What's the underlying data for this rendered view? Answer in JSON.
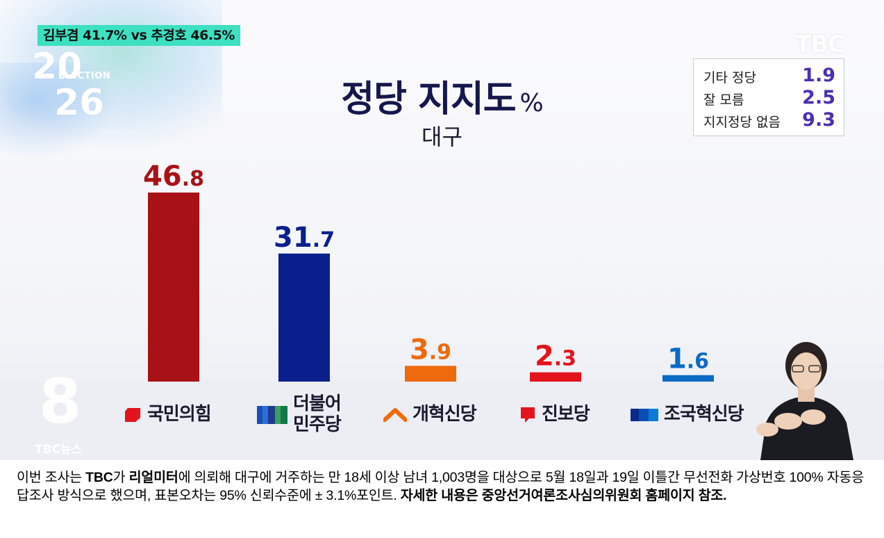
{
  "ticker": "김부겸 41.7% vs 추경호 46.5%",
  "logo": {
    "year_top": "20",
    "year_bottom": "26",
    "election": "ELECTION"
  },
  "broadcaster": "TBC",
  "chart_data": {
    "type": "bar",
    "title": "정당 지지도",
    "unit": "%",
    "subtitle": "대구",
    "categories": [
      "국민의힘",
      "더불어 민주당",
      "개혁신당",
      "진보당",
      "조국혁신당"
    ],
    "values": [
      46.8,
      31.7,
      3.9,
      2.3,
      1.6
    ],
    "value_labels": [
      "46.8",
      "31.7",
      "3.9",
      "2.3",
      "1.6"
    ],
    "colors": [
      "#a81217",
      "#0b1f8c",
      "#ef6a0c",
      "#e3141c",
      "#0b6ac4"
    ],
    "ylim": [
      0,
      50
    ],
    "grid": false,
    "others": [
      {
        "label": "기타 정당",
        "value": "1.9"
      },
      {
        "label": "잘 모름",
        "value": "2.5"
      },
      {
        "label": "지지정당 없음",
        "value": "9.3"
      }
    ]
  },
  "party_labels": {
    "ppp": "국민의힘",
    "dp_line1": "더불어",
    "dp_line2": "민주당",
    "reform": "개혁신당",
    "progressive": "진보당",
    "rebuild": "조국혁신당"
  },
  "channel_logo": {
    "mark": "8",
    "text": "TBC뉴스"
  },
  "footer": {
    "p1": "이번 조사는 ",
    "b1": "TBC",
    "p2": "가 ",
    "b2": "리얼미터",
    "p3": "에 의뢰해 대구에 거주하는 만 18세 이상 남녀 1,003명을 대상으로 5월 18일과 19일 이틀간 무선전화 가상번호 100% 자동응답조사 방식으로 했으며, 표본오차는 95% 신뢰수준에 ± 3.1%포인트. ",
    "b3": "자세한 내용은 중앙선거여론조사심의위원회 홈페이지 참조."
  }
}
